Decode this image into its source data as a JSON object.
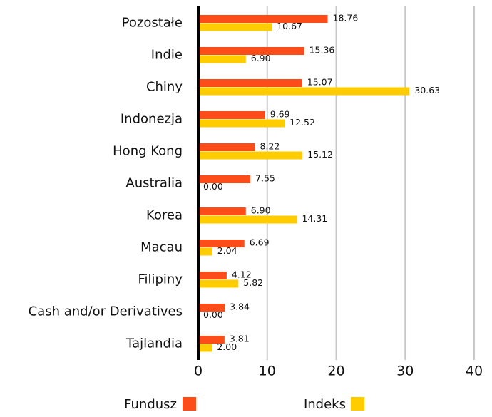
{
  "chart_data": {
    "type": "hbar",
    "categories": [
      "Pozostałe",
      "Indie",
      "Chiny",
      "Indonezja",
      "Hong Kong",
      "Australia",
      "Korea",
      "Macau",
      "Filipiny",
      "Cash and/or Derivatives",
      "Tajlandia"
    ],
    "series": [
      {
        "name": "Fundusz",
        "color": "#fc4c1a",
        "values": [
          18.76,
          15.36,
          15.07,
          9.69,
          8.22,
          7.55,
          6.9,
          6.69,
          4.12,
          3.84,
          3.81
        ],
        "value_labels": [
          "18.76",
          "15.36",
          "15.07",
          "9.69",
          "8.22",
          "7.55",
          "6.90",
          "6.69",
          "4.12",
          "3.84",
          "3.81"
        ]
      },
      {
        "name": "Indeks",
        "color": "#ffcc00",
        "values": [
          10.67,
          6.9,
          30.63,
          12.52,
          15.12,
          0,
          14.31,
          2.04,
          5.82,
          0,
          2.0
        ],
        "value_labels": [
          "10.67",
          "6.90",
          "30.63",
          "12.52",
          "15.12",
          "0.00",
          "14.31",
          "2.04",
          "5.82",
          "0.00",
          "2.00"
        ]
      }
    ],
    "xlim": [
      0,
      40
    ],
    "xticks": [
      0,
      10,
      20,
      30,
      40
    ],
    "grid": true
  }
}
